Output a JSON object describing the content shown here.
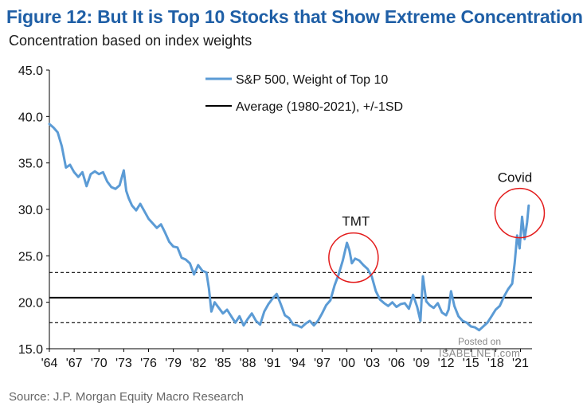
{
  "header": {
    "title": "Figure 12: But It is Top 10 Stocks that Show Extreme Concentration",
    "subtitle": "Concentration based on index weights"
  },
  "footer": {
    "source": "Source: J.P. Morgan Equity Macro Research"
  },
  "watermark": {
    "line1": "Posted on",
    "line2": "ISABELNET.com"
  },
  "chart_data": {
    "type": "line",
    "title": "Figure 12: But It is Top 10 Stocks that Show Extreme Concentration",
    "subtitle": "Concentration based on index weights",
    "xlabel": "",
    "ylabel": "",
    "ylim": [
      15,
      45
    ],
    "xlim": [
      1964,
      2022.4
    ],
    "y_ticks": [
      "15.0",
      "20.0",
      "25.0",
      "30.0",
      "35.0",
      "40.0",
      "45.0"
    ],
    "x_ticks": [
      "'64",
      "'67",
      "'70",
      "'73",
      "'76",
      "'79",
      "'82",
      "'85",
      "'88",
      "'91",
      "'94",
      "'97",
      "'00",
      "'03",
      "'06",
      "'09",
      "'12",
      "'15",
      "'18",
      "'21"
    ],
    "grid": false,
    "legend_position": "top-center",
    "colors": {
      "series": "#5b9bd5",
      "average": "#000000",
      "circle": "#e31b1b",
      "title": "#1f5fa6"
    },
    "series": [
      {
        "name": "S&P 500, Weight of Top 10",
        "x": [
          1964.0,
          1964.5,
          1965.0,
          1965.5,
          1966.0,
          1966.5,
          1967.0,
          1967.5,
          1968.0,
          1968.5,
          1969.0,
          1969.5,
          1970.0,
          1970.5,
          1971.0,
          1971.5,
          1972.0,
          1972.5,
          1973.0,
          1973.3,
          1973.6,
          1974.0,
          1974.5,
          1975.0,
          1975.5,
          1976.0,
          1976.5,
          1977.0,
          1977.5,
          1978.0,
          1978.5,
          1979.0,
          1979.5,
          1980.0,
          1980.5,
          1981.0,
          1981.5,
          1982.0,
          1982.5,
          1983.0,
          1983.3,
          1983.6,
          1984.0,
          1984.5,
          1985.0,
          1985.5,
          1986.0,
          1986.5,
          1987.0,
          1987.5,
          1988.0,
          1988.5,
          1989.0,
          1989.5,
          1990.0,
          1990.5,
          1991.0,
          1991.5,
          1992.0,
          1992.5,
          1993.0,
          1993.5,
          1994.0,
          1994.5,
          1995.0,
          1995.5,
          1996.0,
          1996.5,
          1997.0,
          1997.5,
          1998.0,
          1998.5,
          1999.0,
          1999.5,
          2000.0,
          2000.3,
          2000.6,
          2001.0,
          2001.5,
          2002.0,
          2002.5,
          2003.0,
          2003.5,
          2004.0,
          2004.5,
          2005.0,
          2005.5,
          2006.0,
          2006.5,
          2007.0,
          2007.5,
          2008.0,
          2008.5,
          2008.9,
          2009.2,
          2009.6,
          2010.0,
          2010.5,
          2011.0,
          2011.5,
          2012.0,
          2012.3,
          2012.6,
          2013.0,
          2013.5,
          2014.0,
          2014.5,
          2015.0,
          2015.5,
          2016.0,
          2016.5,
          2017.0,
          2017.5,
          2018.0,
          2018.5,
          2019.0,
          2019.5,
          2020.0,
          2020.3,
          2020.6,
          2020.9,
          2021.2,
          2021.5,
          2021.8,
          2022.0
        ],
        "values": [
          39.2,
          38.8,
          38.3,
          36.8,
          34.5,
          34.8,
          34.0,
          33.5,
          34.0,
          32.5,
          33.8,
          34.1,
          33.8,
          34.0,
          33.0,
          32.4,
          32.2,
          32.6,
          34.2,
          32.0,
          31.2,
          30.4,
          29.9,
          30.6,
          29.8,
          29.0,
          28.5,
          28.0,
          28.4,
          27.5,
          26.5,
          26.0,
          25.9,
          24.8,
          24.6,
          24.2,
          23.0,
          24.0,
          23.4,
          23.2,
          21.5,
          19.0,
          20.0,
          19.4,
          18.8,
          19.2,
          18.5,
          17.8,
          18.5,
          17.5,
          18.2,
          18.8,
          18.0,
          17.6,
          19.0,
          19.8,
          20.4,
          20.9,
          19.8,
          18.6,
          18.3,
          17.6,
          17.5,
          17.3,
          17.7,
          18.0,
          17.5,
          18.0,
          18.8,
          19.7,
          20.2,
          21.8,
          23.0,
          24.5,
          26.4,
          25.6,
          24.2,
          24.7,
          24.5,
          24.0,
          23.6,
          22.8,
          21.2,
          20.3,
          19.9,
          19.6,
          20.0,
          19.5,
          19.8,
          19.9,
          19.3,
          20.8,
          19.5,
          18.0,
          22.8,
          20.1,
          19.7,
          19.4,
          19.9,
          18.9,
          18.6,
          19.2,
          21.2,
          19.6,
          18.5,
          18.0,
          17.8,
          17.4,
          17.3,
          17.0,
          17.4,
          17.8,
          18.5,
          19.2,
          19.6,
          20.6,
          21.4,
          22.0,
          24.2,
          27.2,
          25.8,
          29.2,
          26.8,
          28.6,
          30.4
        ]
      },
      {
        "name": "Average (1980-2021), +/-1SD",
        "average": 20.5,
        "upper": 23.2,
        "lower": 17.8
      }
    ],
    "annotations": [
      {
        "text": "TMT",
        "x": 2000.8,
        "y": 24.8
      },
      {
        "text": "Covid",
        "x": 2021.0,
        "y": 29.6
      }
    ]
  }
}
